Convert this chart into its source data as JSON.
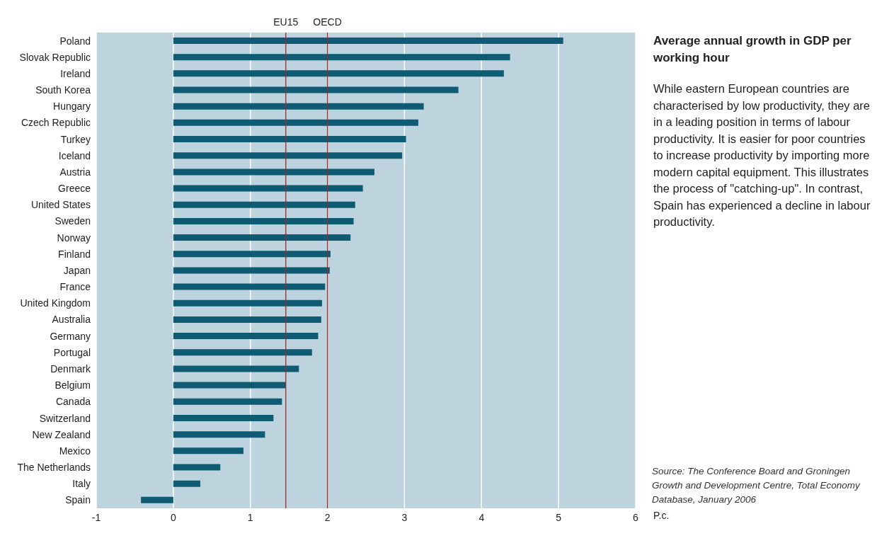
{
  "chart_data": {
    "type": "bar",
    "orientation": "horizontal",
    "title": "Average annual growth in GDP per working hour",
    "xlabel": "P.c.",
    "categories": [
      "Poland",
      "Slovak Republic",
      "Ireland",
      "South Korea",
      "Hungary",
      "Czech Republic",
      "Turkey",
      "Iceland",
      "Austria",
      "Greece",
      "United States",
      "Sweden",
      "Norway",
      "Finland",
      "Japan",
      "France",
      "United Kingdom",
      "Australia",
      "Germany",
      "Portugal",
      "Denmark",
      "Belgium",
      "Canada",
      "Switzerland",
      "New Zealand",
      "Mexico",
      "The Netherlands",
      "Italy",
      "Spain"
    ],
    "values": [
      5.06,
      4.37,
      4.29,
      3.7,
      3.25,
      3.18,
      3.02,
      2.97,
      2.61,
      2.46,
      2.36,
      2.34,
      2.3,
      2.04,
      2.03,
      1.97,
      1.93,
      1.92,
      1.88,
      1.8,
      1.63,
      1.46,
      1.41,
      1.3,
      1.19,
      0.91,
      0.61,
      0.35,
      -0.42
    ],
    "color": "#0e5b73",
    "xlim": [
      -1,
      6
    ],
    "xticks": [
      -1,
      0,
      1,
      2,
      3,
      4,
      5,
      6
    ],
    "grid": "x",
    "legend": false,
    "ref_lines": [
      {
        "axis": "x",
        "value": 1.46,
        "label": "EU15",
        "color": "#a0282d"
      },
      {
        "axis": "x",
        "value": 2,
        "label": "OECD",
        "color": "#a0282d"
      }
    ],
    "annotations": [
      "While eastern European countries are characterised by low productivity, they are in a leading position in terms of labour productivity. It is easier for poor countries to increase productivity by importing more modern capital equipment. This illustrates the process of \"catching-up\". In contrast, Spain has experienced a decline in labour productivity.",
      "Source: The Conference Board and Groningen Growth and Development Centre, Total Economy Database, January 2006"
    ]
  }
}
